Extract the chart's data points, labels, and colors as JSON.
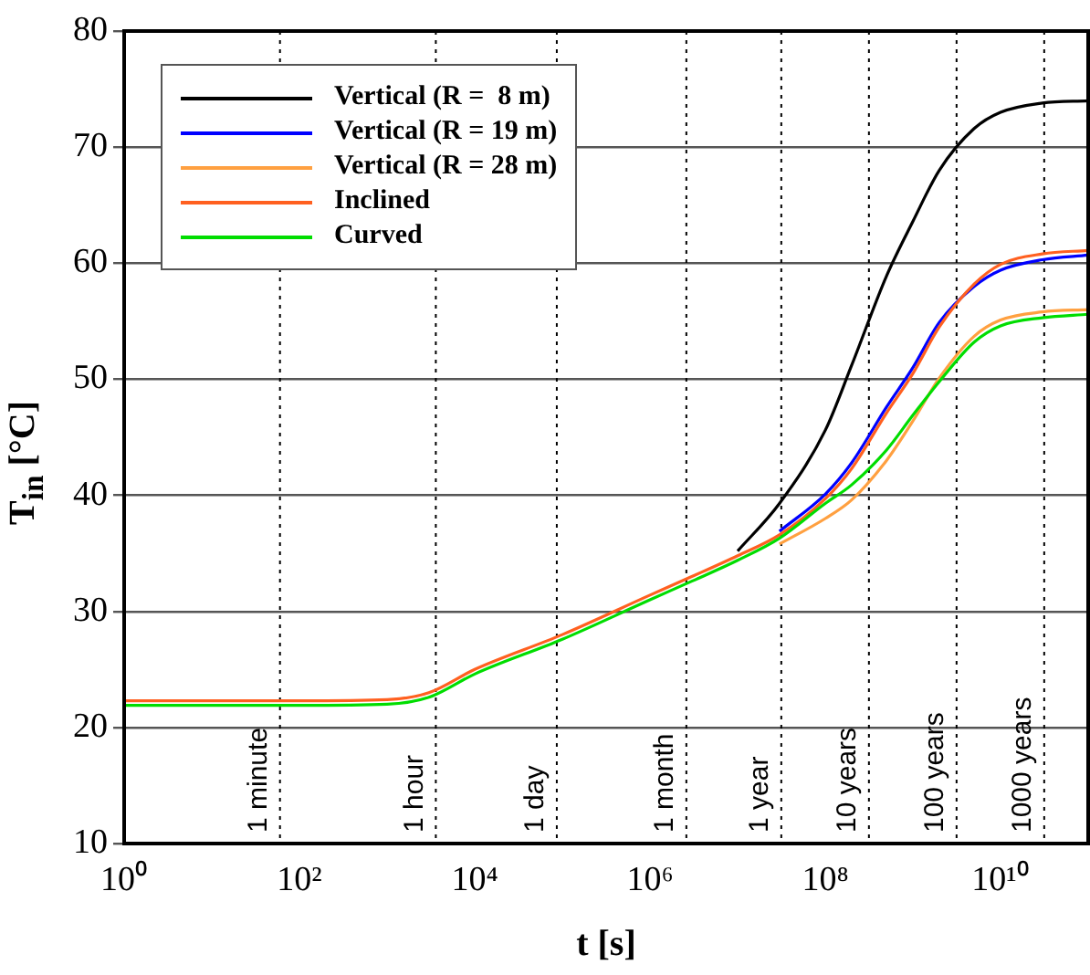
{
  "chart_data": {
    "type": "line",
    "xlabel": "t [s]",
    "ylabel": "T$_{in}$ [°C]",
    "log": "x",
    "grid": "y",
    "legend": "top left",
    "marker": "none",
    "line_style": "solid",
    "xlim": [
      1,
      100000000000
    ],
    "ylim": [
      10,
      80
    ],
    "xticks": [
      {
        "value": 1,
        "label": "10⁰"
      },
      {
        "value": 100,
        "label": "10²"
      },
      {
        "value": 10000,
        "label": "10⁴"
      },
      {
        "value": 1000000,
        "label": "10⁶"
      },
      {
        "value": 100000000,
        "label": "10⁸"
      },
      {
        "value": 10000000000,
        "label": "10¹⁰"
      }
    ],
    "yticks": [
      10,
      20,
      30,
      40,
      50,
      60,
      70,
      80
    ],
    "x": [
      1,
      10,
      100,
      1000,
      3000,
      10000,
      100000,
      1000000,
      3000000,
      10000000,
      30000000,
      100000000,
      200000000,
      500000000,
      1000000000,
      2000000000,
      5000000000,
      10000000000,
      30000000000,
      100000000000
    ],
    "series": [
      {
        "name": "Vertical (R =  8 m)",
        "color": "#000000",
        "values": [
          null,
          null,
          null,
          null,
          null,
          null,
          null,
          null,
          null,
          35.2,
          39.3,
          45.6,
          51.2,
          58.9,
          63.6,
          68.0,
          71.6,
          73.0,
          73.8,
          74.0
        ]
      },
      {
        "name": "Vertical (R = 19 m)",
        "color": "#0000ff",
        "values": [
          null,
          null,
          null,
          null,
          null,
          null,
          null,
          null,
          null,
          null,
          36.9,
          40.1,
          42.8,
          47.6,
          51.0,
          54.9,
          58.0,
          59.4,
          60.3,
          60.7
        ]
      },
      {
        "name": "Vertical (R = 28 m)",
        "color": "#ffa040",
        "values": [
          null,
          null,
          null,
          null,
          null,
          null,
          null,
          null,
          null,
          null,
          35.8,
          38.0,
          39.6,
          43.0,
          46.4,
          50.1,
          53.7,
          55.1,
          55.8,
          56.0
        ]
      },
      {
        "name": "Inclined",
        "color": "#ff6020",
        "values": [
          22.3,
          22.3,
          22.3,
          22.4,
          23.0,
          25.0,
          28.0,
          31.4,
          33.0,
          34.8,
          36.6,
          39.7,
          42.3,
          47.1,
          50.5,
          54.5,
          58.2,
          59.9,
          60.8,
          61.1
        ]
      },
      {
        "name": "Curved",
        "color": "#00dd00",
        "values": [
          21.9,
          21.9,
          21.9,
          22.0,
          22.6,
          24.6,
          27.6,
          31.0,
          32.6,
          34.4,
          36.3,
          39.3,
          40.9,
          43.9,
          46.9,
          49.8,
          53.2,
          54.6,
          55.3,
          55.6
        ]
      }
    ],
    "ref_lines": [
      {
        "axis": "x",
        "value": 60,
        "label": "1 minute",
        "line_style": "dotted"
      },
      {
        "axis": "x",
        "value": 3600,
        "label": "1 hour",
        "line_style": "dotted"
      },
      {
        "axis": "x",
        "value": 86400,
        "label": "1 day",
        "line_style": "dotted"
      },
      {
        "axis": "x",
        "value": 2600000,
        "label": "1 month",
        "line_style": "dotted"
      },
      {
        "axis": "x",
        "value": 31500000,
        "label": "1 year",
        "line_style": "dotted"
      },
      {
        "axis": "x",
        "value": 315000000,
        "label": "10 years",
        "line_style": "dotted"
      },
      {
        "axis": "x",
        "value": 3150000000,
        "label": "100 years",
        "line_style": "dotted"
      },
      {
        "axis": "x",
        "value": 31500000000,
        "label": "1000 years",
        "line_style": "dotted"
      }
    ]
  }
}
